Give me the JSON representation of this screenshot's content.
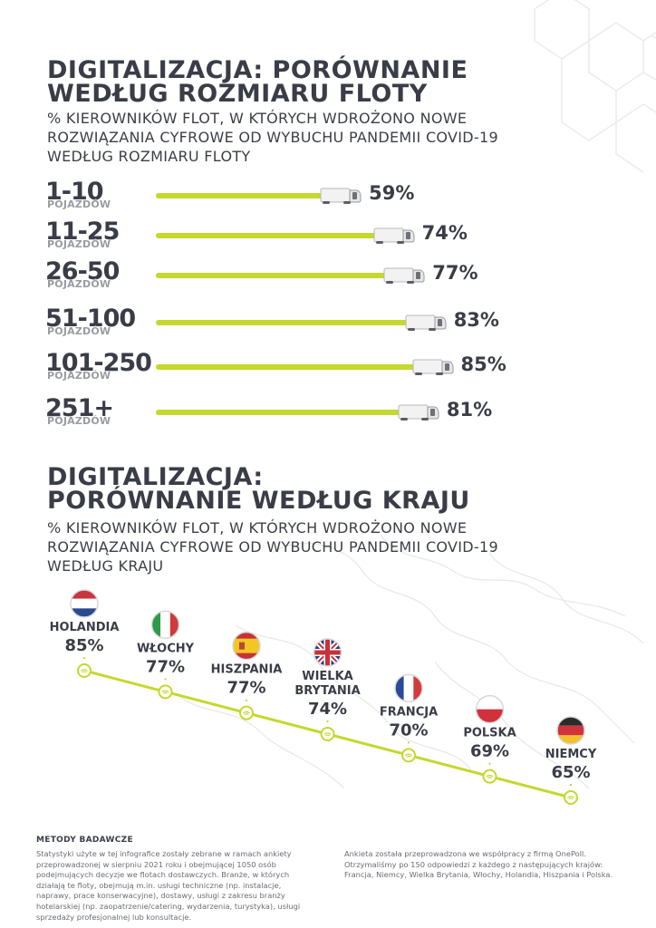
{
  "section1": {
    "title_line1": "DIGITALIZACJA: PORÓWNANIE",
    "title_line2": "WEDŁUG ROZMIARU FLOTY",
    "subtitle_line1": "% KIEROWNIKÓW FLOT, W KTÓRYCH WDROŻONO NOWE",
    "subtitle_line2": "ROZWIĄZANIA CYFROWE OD WYBUCHU PANDEMII COVID-19",
    "subtitle_line3": "WEDŁUG ROZMIARU FLOTY"
  },
  "section2": {
    "title_line1": "DIGITALIZACJA:",
    "title_line2": "PORÓWNANIE WEDŁUG KRAJU",
    "subtitle_line1": "% KIEROWNIKÓW FLOT, W KTÓRYCH WDROŻONO NOWE",
    "subtitle_line2": "ROZWIĄZANIA CYFROWE OD WYBUCHU PANDEMII COVID-19",
    "subtitle_line3": "WEDŁUG KRAJU"
  },
  "chart_data": [
    {
      "type": "bar",
      "orientation": "horizontal",
      "categories": [
        "1-10",
        "11-25",
        "26-50",
        "51-100",
        "101-250",
        "251+"
      ],
      "category_unit": "POJAZDÓW",
      "values": [
        59,
        74,
        77,
        83,
        85,
        81
      ],
      "value_labels": [
        "59%",
        "74%",
        "77%",
        "83%",
        "85%",
        "81%"
      ],
      "bar_color": "#c4d82e"
    },
    {
      "type": "line",
      "categories": [
        "HOLANDIA",
        "WŁOCHY",
        "HISZPANIA",
        "WIELKA BRYTANIA",
        "FRANCJA",
        "POLSKA",
        "NIEMCY"
      ],
      "label_lines": [
        [
          "HOLANDIA"
        ],
        [
          "WŁOCHY"
        ],
        [
          "HISZPANIA"
        ],
        [
          "WIELKA",
          "BRYTANIA"
        ],
        [
          "FRANCJA"
        ],
        [
          "POLSKA"
        ],
        [
          "NIEMCY"
        ]
      ],
      "flags": [
        "netherlands-flag",
        "italy-flag",
        "spain-flag",
        "uk-flag",
        "france-flag",
        "poland-flag",
        "germany-flag"
      ],
      "values": [
        85,
        77,
        77,
        74,
        70,
        69,
        65
      ],
      "value_labels": [
        "85%",
        "77%",
        "77%",
        "74%",
        "70%",
        "69%",
        "65%"
      ],
      "line_color": "#c4d82e"
    }
  ],
  "methods": {
    "title": "METODY BADAWCZE",
    "left_lines": [
      "Statystyki użyte w tej infografice zostały zebrane w ramach ankiety",
      "przeprowadzonej w sierpniu 2021 roku i obejmującej 1050 osób",
      "podejmujących decyzje we flotach dostawczych. Branże, w których",
      "działają te floty, obejmują m.in. usługi techniczne (np. instalacje,",
      "naprawy, prace konserwacyjne), dostawy, usługi z zakresu branży",
      "hotelarskiej (np. zaopatrzenie/catering, wydarzenia, turystyka), usługi",
      "sprzedaży profesjonalnej lub konsultacje."
    ],
    "right_lines": [
      "Ankieta została przeprowadzona we współpracy z firmą OnePoll.",
      "Otrzymaliśmy po 150 odpowiedzi z każdego z następujących krajów:",
      "Francja, Niemcy, Wielka Brytania, Włochy, Holandia, Hiszpania i Polska."
    ]
  },
  "colors": {
    "accent": "#c4d82e",
    "text": "#3a3d47",
    "muted": "#9a9ca2"
  }
}
